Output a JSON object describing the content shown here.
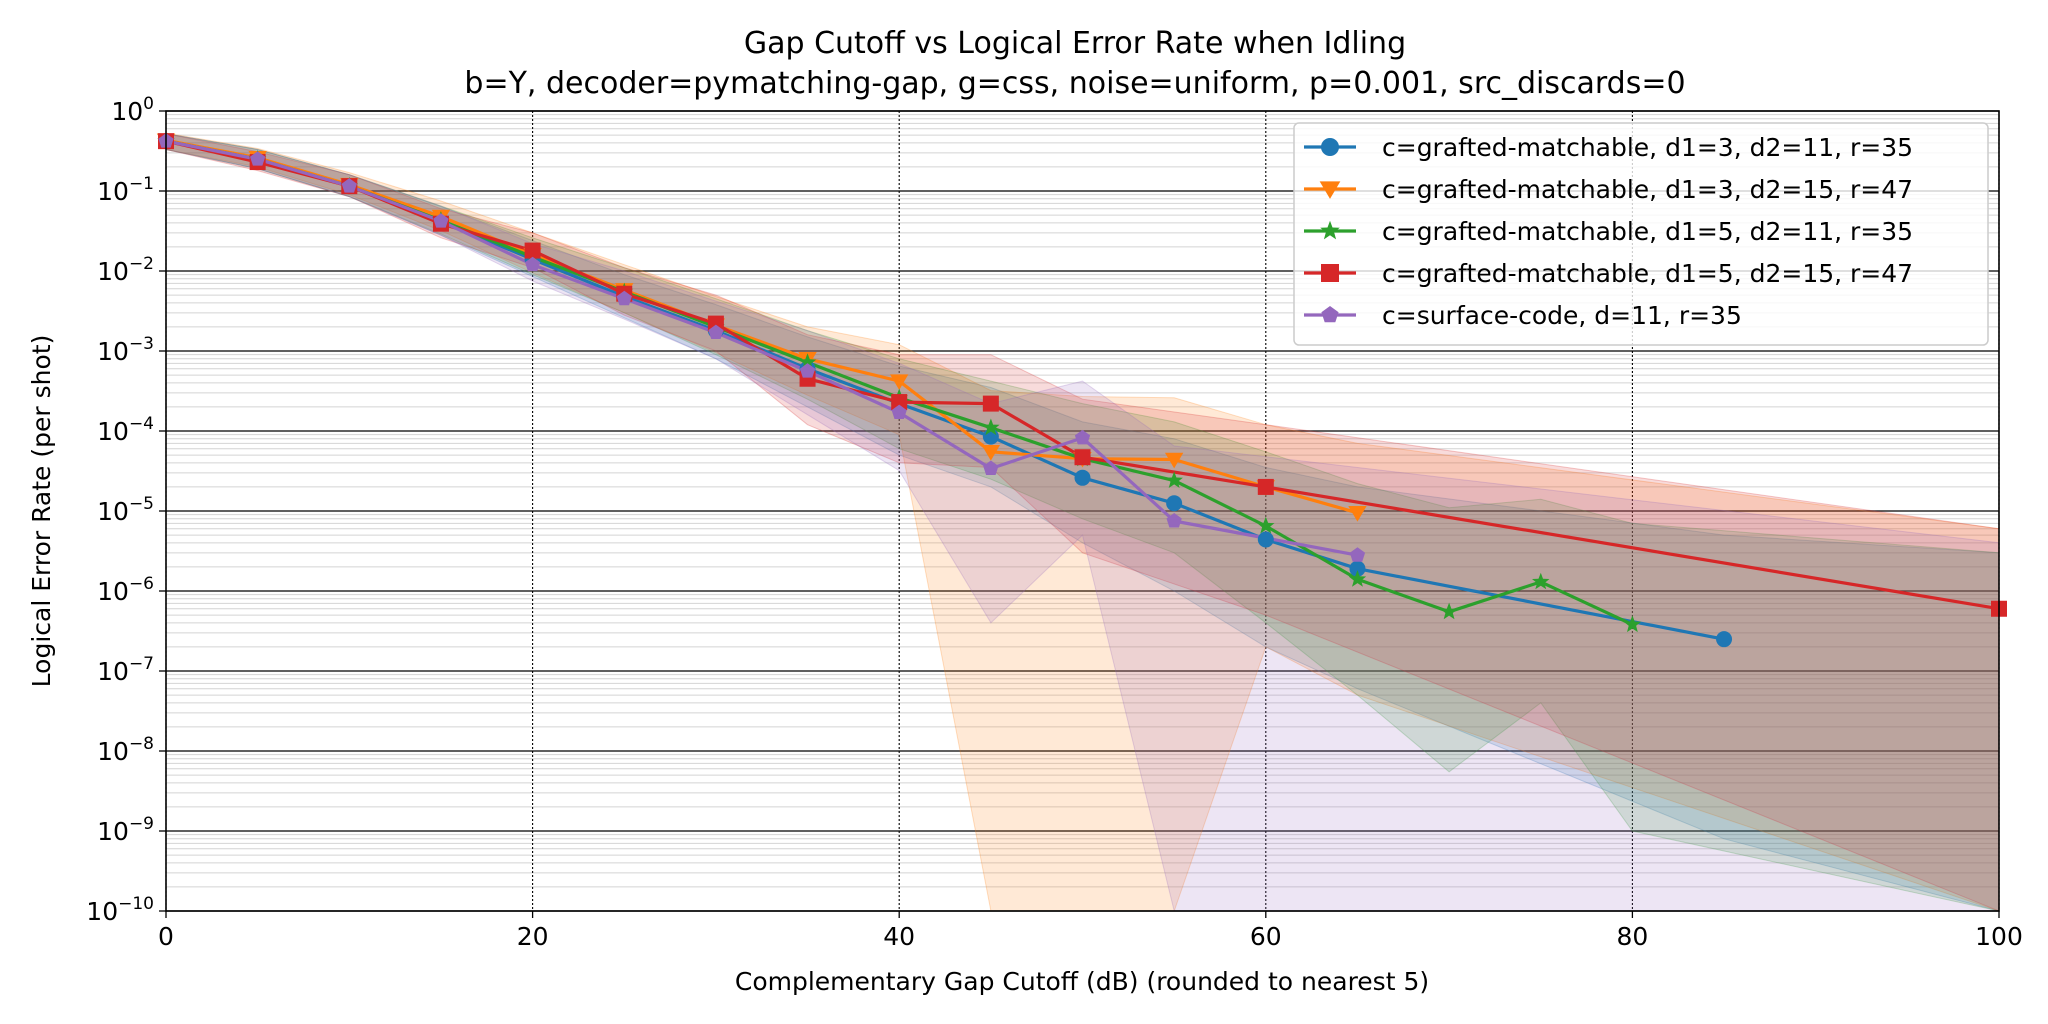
{
  "chart_data": {
    "type": "line",
    "title": "Gap Cutoff vs Logical Error Rate when Idling",
    "subtitle": "b=Y, decoder=pymatching-gap, g=css, noise=uniform, p=0.001, src_discards=0",
    "xlabel": "Complementary Gap Cutoff (dB) (rounded to nearest 5)",
    "ylabel": "Logical Error Rate (per shot)",
    "xlim": [
      0,
      100
    ],
    "ylim": [
      1e-10,
      1
    ],
    "yscale": "log",
    "grid": true,
    "legend_position": "top-right",
    "x_ticks": [
      "0",
      "20",
      "40",
      "60",
      "80",
      "100"
    ],
    "y_ticks": [
      {
        "base": "10",
        "exp": "0",
        "value": 1
      },
      {
        "base": "10",
        "exp": "−1",
        "value": 0.1
      },
      {
        "base": "10",
        "exp": "−2",
        "value": 0.01
      },
      {
        "base": "10",
        "exp": "−3",
        "value": 0.001
      },
      {
        "base": "10",
        "exp": "−4",
        "value": 0.0001
      },
      {
        "base": "10",
        "exp": "−5",
        "value": 1e-05
      },
      {
        "base": "10",
        "exp": "−6",
        "value": 1e-06
      },
      {
        "base": "10",
        "exp": "−7",
        "value": 1e-07
      },
      {
        "base": "10",
        "exp": "−8",
        "value": 1e-08
      },
      {
        "base": "10",
        "exp": "−9",
        "value": 1e-09
      },
      {
        "base": "10",
        "exp": "−10",
        "value": 1e-10
      }
    ],
    "series": [
      {
        "name": "c=grafted-matchable, d1=3, d2=11, r=35",
        "color": "#1f77b4",
        "marker": "circle",
        "points": [
          [
            0,
            0.42
          ],
          [
            5,
            0.25
          ],
          [
            10,
            0.115
          ],
          [
            15,
            0.042
          ],
          [
            20,
            0.014
          ],
          [
            25,
            0.0048
          ],
          [
            30,
            0.0018
          ],
          [
            35,
            0.0006
          ],
          [
            40,
            0.00022
          ],
          [
            45,
            8.5e-05
          ],
          [
            50,
            2.6e-05
          ],
          [
            55,
            1.25e-05
          ],
          [
            60,
            4.4e-06
          ],
          [
            65,
            1.9e-06
          ],
          [
            85,
            2.5e-07
          ]
        ],
        "band": {
          "x": [
            0,
            5,
            10,
            15,
            20,
            25,
            30,
            35,
            40,
            45,
            50,
            55,
            60,
            65,
            85,
            100
          ],
          "low": [
            0.33,
            0.19,
            0.085,
            0.028,
            0.0085,
            0.0026,
            0.0008,
            0.0002,
            5e-05,
            2e-05,
            4e-06,
            1e-06,
            2e-07,
            6e-08,
            8e-10,
            1e-10
          ],
          "high": [
            0.52,
            0.33,
            0.16,
            0.064,
            0.024,
            0.009,
            0.0038,
            0.0015,
            0.00065,
            0.00035,
            0.00013,
            8e-05,
            3.5e-05,
            2e-05,
            5e-06,
            3e-06
          ]
        }
      },
      {
        "name": "c=grafted-matchable, d1=3, d2=15, r=47",
        "color": "#ff7f0e",
        "marker": "triangle-down",
        "points": [
          [
            0,
            0.43
          ],
          [
            5,
            0.26
          ],
          [
            10,
            0.12
          ],
          [
            15,
            0.048
          ],
          [
            20,
            0.016
          ],
          [
            25,
            0.0058
          ],
          [
            30,
            0.0021
          ],
          [
            35,
            0.0008
          ],
          [
            40,
            0.00042
          ],
          [
            45,
            5.5e-05
          ],
          [
            50,
            4.5e-05
          ],
          [
            55,
            4.4e-05
          ],
          [
            60,
            2e-05
          ],
          [
            65,
            9.5e-06
          ]
        ],
        "band": {
          "x": [
            0,
            5,
            10,
            15,
            20,
            25,
            30,
            35,
            40,
            45,
            50,
            55,
            60,
            65,
            100
          ],
          "low": [
            0.33,
            0.2,
            0.09,
            0.032,
            0.0095,
            0.003,
            0.00095,
            0.00028,
            9e-05,
            1e-10,
            1e-10,
            1e-10,
            2e-07,
            5e-08,
            1e-10
          ],
          "high": [
            0.53,
            0.34,
            0.17,
            0.075,
            0.03,
            0.012,
            0.0048,
            0.002,
            0.0012,
            0.00032,
            0.00027,
            0.00026,
            0.00012,
            7e-05,
            6e-06
          ]
        }
      },
      {
        "name": "c=grafted-matchable, d1=5, d2=11, r=35",
        "color": "#2ca02c",
        "marker": "star",
        "points": [
          [
            0,
            0.42
          ],
          [
            5,
            0.25
          ],
          [
            10,
            0.115
          ],
          [
            15,
            0.043
          ],
          [
            20,
            0.015
          ],
          [
            25,
            0.0055
          ],
          [
            30,
            0.002
          ],
          [
            35,
            0.00072
          ],
          [
            40,
            0.00026
          ],
          [
            45,
            0.00011
          ],
          [
            50,
            4.5e-05
          ],
          [
            55,
            2.4e-05
          ],
          [
            60,
            6.5e-06
          ],
          [
            65,
            1.4e-06
          ],
          [
            70,
            5.5e-07
          ],
          [
            75,
            1.3e-06
          ],
          [
            80,
            3.8e-07
          ]
        ],
        "band": {
          "x": [
            0,
            5,
            10,
            15,
            20,
            25,
            30,
            35,
            40,
            45,
            50,
            55,
            60,
            65,
            70,
            75,
            80,
            100
          ],
          "low": [
            0.33,
            0.19,
            0.085,
            0.029,
            0.009,
            0.003,
            0.0009,
            0.00025,
            6e-05,
            2.5e-05,
            8e-06,
            3e-06,
            4e-07,
            5e-08,
            5.5e-09,
            4e-08,
            1e-09,
            1e-10
          ],
          "high": [
            0.52,
            0.33,
            0.16,
            0.065,
            0.026,
            0.011,
            0.0045,
            0.0018,
            0.0008,
            0.00042,
            0.00022,
            0.00013,
            5.5e-05,
            2.2e-05,
            1.1e-05,
            1.4e-05,
            7e-06,
            3e-06
          ]
        }
      },
      {
        "name": "c=grafted-matchable, d1=5, d2=15, r=47",
        "color": "#d62728",
        "marker": "square",
        "points": [
          [
            0,
            0.42
          ],
          [
            5,
            0.23
          ],
          [
            10,
            0.115
          ],
          [
            15,
            0.039
          ],
          [
            20,
            0.018
          ],
          [
            25,
            0.0052
          ],
          [
            30,
            0.0022
          ],
          [
            35,
            0.00045
          ],
          [
            40,
            0.00023
          ],
          [
            45,
            0.00022
          ],
          [
            50,
            4.7e-05
          ],
          [
            60,
            2e-05
          ],
          [
            100,
            6e-07
          ]
        ],
        "band": {
          "x": [
            0,
            5,
            10,
            15,
            20,
            25,
            30,
            35,
            40,
            45,
            50,
            60,
            100
          ],
          "low": [
            0.33,
            0.18,
            0.085,
            0.026,
            0.011,
            0.0028,
            0.001,
            0.00012,
            4e-05,
            3.5e-05,
            3e-06,
            5e-07,
            1e-10
          ],
          "high": [
            0.52,
            0.31,
            0.16,
            0.06,
            0.03,
            0.011,
            0.005,
            0.0016,
            0.0009,
            0.0009,
            0.00025,
            0.00012,
            6e-06
          ]
        }
      },
      {
        "name": "c=surface-code, d=11, r=35",
        "color": "#9467bd",
        "marker": "pentagon",
        "points": [
          [
            0,
            0.42
          ],
          [
            5,
            0.25
          ],
          [
            10,
            0.115
          ],
          [
            15,
            0.042
          ],
          [
            20,
            0.012
          ],
          [
            25,
            0.0045
          ],
          [
            30,
            0.0017
          ],
          [
            35,
            0.00056
          ],
          [
            40,
            0.00017
          ],
          [
            45,
            3.4e-05
          ],
          [
            50,
            8.2e-05
          ],
          [
            55,
            7.5e-06
          ],
          [
            65,
            2.8e-06
          ]
        ],
        "band": {
          "x": [
            0,
            5,
            10,
            15,
            20,
            25,
            30,
            35,
            40,
            45,
            50,
            55,
            65,
            100
          ],
          "low": [
            0.33,
            0.19,
            0.085,
            0.028,
            0.0075,
            0.0025,
            0.0008,
            0.00016,
            3.2e-05,
            4e-07,
            5e-06,
            1e-10,
            1e-10,
            1e-10
          ],
          "high": [
            0.52,
            0.33,
            0.16,
            0.065,
            0.022,
            0.01,
            0.0042,
            0.0018,
            0.0007,
            0.00022,
            0.00042,
            6.5e-05,
            3.5e-05,
            4e-06
          ]
        }
      }
    ]
  }
}
